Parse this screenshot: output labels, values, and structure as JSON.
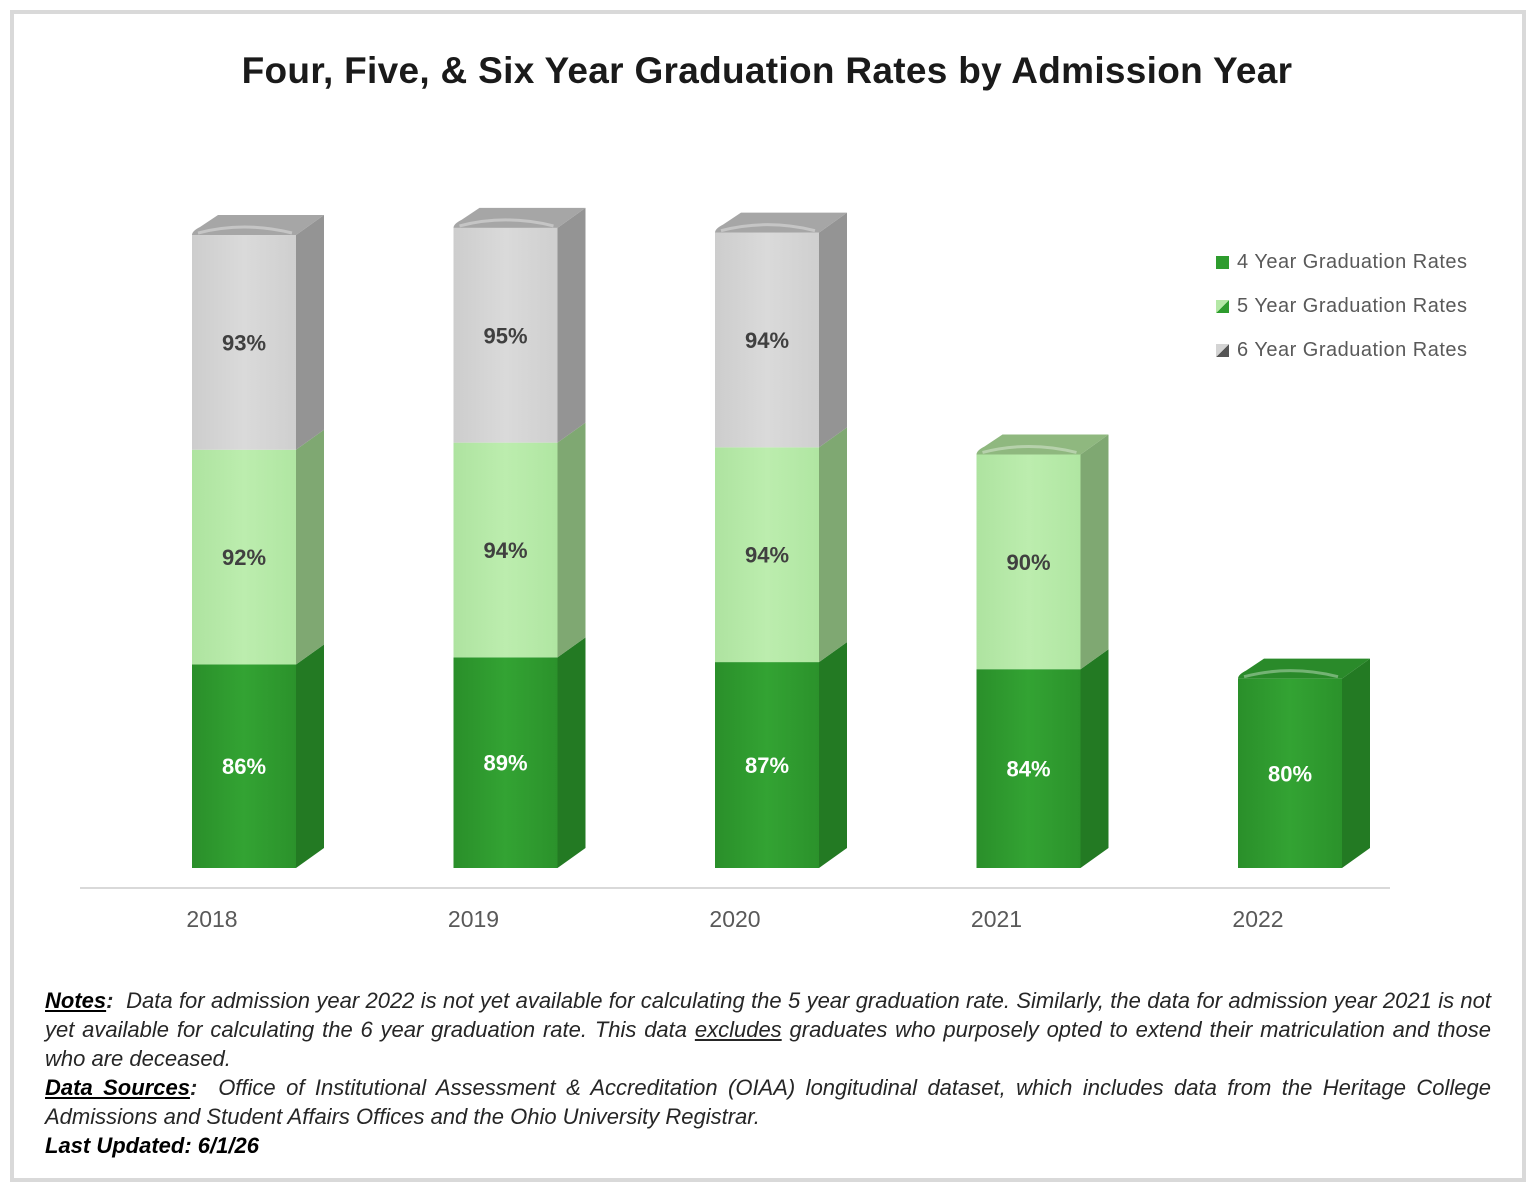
{
  "chart_data": {
    "type": "bar",
    "title": "Four, Five, & Six Year Graduation Rates by Admission Year",
    "categories": [
      "2018",
      "2019",
      "2020",
      "2021",
      "2022"
    ],
    "series": [
      {
        "name": "4 Year Graduation Rates",
        "values": [
          86,
          89,
          87,
          84,
          80
        ],
        "labels": [
          "86%",
          "89%",
          "87%",
          "84%",
          "80%"
        ],
        "color": "#2e9c2e"
      },
      {
        "name": "5 Year Graduation Rates",
        "values": [
          92,
          94,
          94,
          90,
          null
        ],
        "labels": [
          "92%",
          "94%",
          "94%",
          "90%",
          ""
        ],
        "color": "#b4e8a6"
      },
      {
        "name": "6 Year Graduation Rates",
        "values": [
          93,
          95,
          94,
          null,
          null
        ],
        "labels": [
          "93%",
          "95%",
          "94%",
          "",
          ""
        ],
        "color": "#d4d4d4"
      }
    ],
    "xlabel": "",
    "ylabel": "",
    "legend_position": "right",
    "grid": false
  },
  "notes": {
    "notes_label": "Notes",
    "notes_text": "Data for admission year 2022 is not yet available for calculating the 5 year graduation rate. Similarly, the data for admission year 2021 is not yet available for calculating the 6 year graduation rate. This data ",
    "notes_emph": "excludes",
    "notes_tail": " graduates who purposely opted to extend their matriculation and those who are deceased.",
    "sources_label": "Data Sources",
    "sources_text": "Office of Institutional Assessment & Accreditation (OIAA) longitudinal dataset, which includes data from the Heritage College Admissions and Student Affairs Offices and the Ohio University Registrar.",
    "updated": "Last Updated: 6/1/26"
  }
}
